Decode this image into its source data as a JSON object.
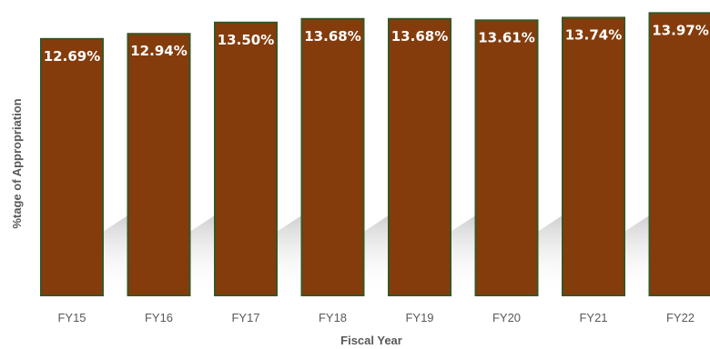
{
  "chart_data": {
    "type": "bar",
    "title": "",
    "xlabel": "Fiscal Year",
    "ylabel": "%tage of Appropriation",
    "categories": [
      "FY15",
      "FY16",
      "FY17",
      "FY18",
      "FY19",
      "FY20",
      "FY21",
      "FY22"
    ],
    "values": [
      12.69,
      12.94,
      13.5,
      13.68,
      13.68,
      13.61,
      13.74,
      13.97
    ],
    "data_labels": [
      "12.69%",
      "12.94%",
      "13.50%",
      "13.68%",
      "13.68%",
      "13.61%",
      "13.74%",
      "13.97%"
    ],
    "ylim": [
      0,
      14.3
    ],
    "grid": false,
    "legend": "none",
    "colors": {
      "bar_fill": "#843c0c",
      "bar_border": "#375623",
      "label_text": "#ffffff",
      "axis_text": "#595959"
    }
  }
}
